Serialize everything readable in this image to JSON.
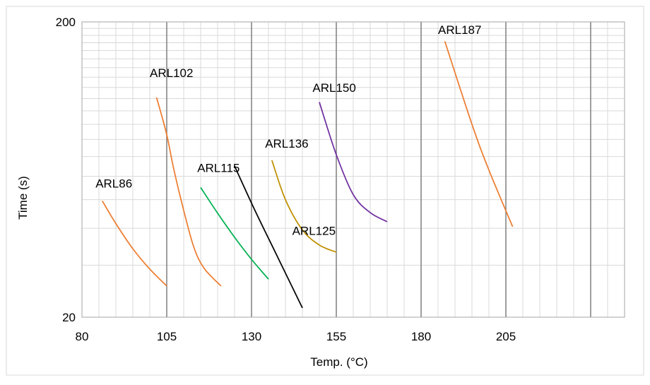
{
  "chart_data": {
    "type": "line",
    "title": "",
    "xlabel": "Temp. (°C)",
    "ylabel": "Time (s)",
    "xlim": [
      80,
      240
    ],
    "ylim": [
      20,
      200
    ],
    "yscale": "log",
    "x_ticks": [
      80,
      105,
      130,
      155,
      180,
      205
    ],
    "y_ticks": [
      20,
      200
    ],
    "grid": true,
    "legend": "none",
    "series": [
      {
        "name": "ARL86",
        "color": "#ED7D31",
        "x": [
          86,
          90,
          95,
          100,
          105
        ],
        "y": [
          49.5,
          41.5,
          34.1,
          29.1,
          25.5
        ]
      },
      {
        "name": "ARL102",
        "color": "#ED7D31",
        "x": [
          102,
          105,
          107,
          110,
          113,
          116,
          121
        ],
        "y": [
          111,
          83,
          64,
          46,
          34.5,
          29.3,
          25.5
        ]
      },
      {
        "name": "ARL115",
        "color": "#00B050",
        "x": [
          115,
          120,
          125,
          130,
          135
        ],
        "y": [
          55,
          45,
          37.3,
          31.4,
          26.9
        ]
      },
      {
        "name": "ARL136",
        "color": "#BF9000",
        "x": [
          136,
          140,
          145,
          150,
          155
        ],
        "y": [
          68,
          50,
          39.5,
          35.1,
          33.2
        ]
      },
      {
        "name": "ARL150",
        "color": "#7030A0",
        "x": [
          150,
          155,
          160,
          165,
          170
        ],
        "y": [
          107,
          71,
          52,
          45.2,
          42.1
        ]
      },
      {
        "name": "ARL187",
        "color": "#ED7D31",
        "x": [
          187,
          195,
          200,
          207
        ],
        "y": [
          172,
          90,
          63,
          40.5
        ]
      },
      {
        "name": "",
        "color": "#000000",
        "x": [
          125,
          131,
          137,
          145
        ],
        "y": [
          65,
          46,
          33.2,
          21.5
        ]
      }
    ],
    "annotations": [
      {
        "text": "ARL86",
        "x": 84,
        "y": 55
      },
      {
        "text": "ARL102",
        "x": 100,
        "y": 130
      },
      {
        "text": "ARL115",
        "x": 114,
        "y": 62
      },
      {
        "text": "ARL125",
        "x": 142,
        "y": 38
      },
      {
        "text": "ARL136",
        "x": 134,
        "y": 75
      },
      {
        "text": "ARL150",
        "x": 148,
        "y": 116
      },
      {
        "text": "ARL187",
        "x": 185,
        "y": 182
      }
    ]
  }
}
